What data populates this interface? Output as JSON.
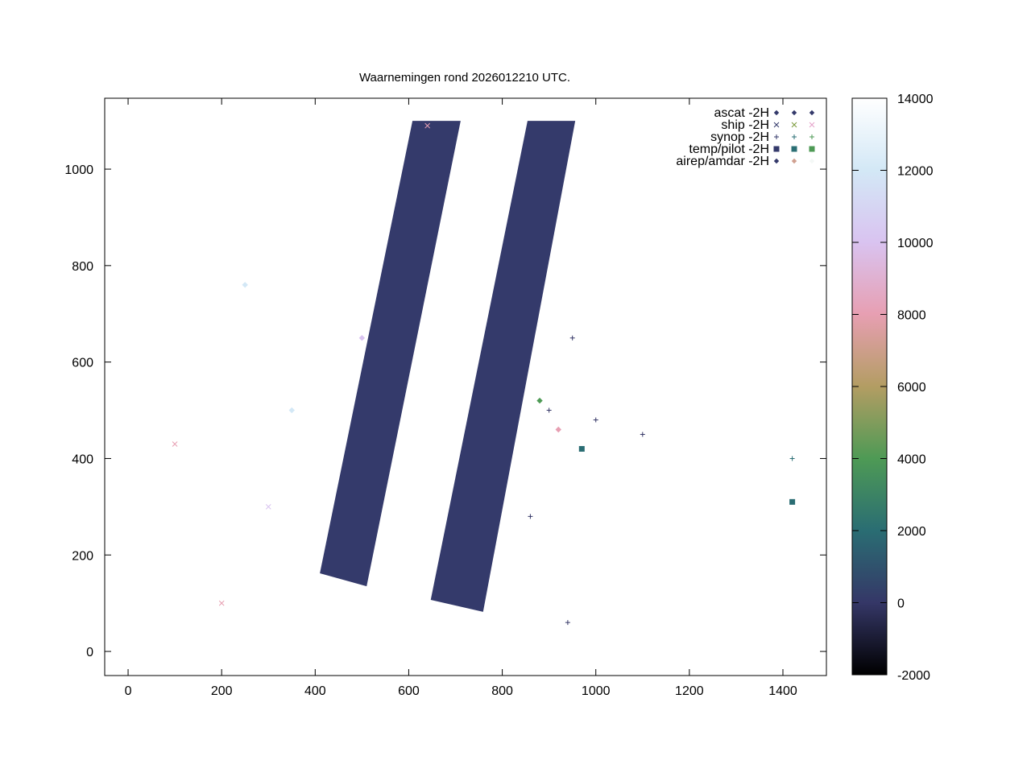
{
  "chart_data": {
    "type": "scatter",
    "title": "Waarnemingen rond 2026012210 UTC.",
    "xlim": [
      -50,
      1493
    ],
    "ylim": [
      -50,
      1147
    ],
    "x_ticks": [
      0,
      200,
      400,
      600,
      800,
      1000,
      1200,
      1400
    ],
    "y_ticks": [
      0,
      200,
      400,
      600,
      800,
      1000
    ],
    "grid": false,
    "legend_placement": "top-right",
    "legend": [
      {
        "name": "ascat -2H",
        "symbol": "diamond",
        "colors": [
          "#343a6b",
          "#343a6b",
          "#343a6b"
        ]
      },
      {
        "name": "ship -2H",
        "symbol": "x",
        "colors": [
          "#343a6b",
          "#7a9a3a",
          "#e4a0c8"
        ]
      },
      {
        "name": "synop -2H",
        "symbol": "+",
        "colors": [
          "#343a6b",
          "#2b6f74",
          "#4e9a55"
        ]
      },
      {
        "name": "temp/pilot -2H",
        "symbol": "square",
        "colors": [
          "#343a6b",
          "#2b6f74",
          "#4e9a55"
        ]
      },
      {
        "name": "airep/amdar -2H",
        "symbol": "diamond",
        "colors": [
          "#343a6b",
          "#d0a090",
          "#f4f8f6"
        ]
      }
    ],
    "ascat_swaths": [
      [
        [
          608,
          1100
        ],
        [
          711,
          1100
        ],
        [
          510,
          135
        ],
        [
          410,
          162
        ]
      ],
      [
        [
          854,
          1100
        ],
        [
          956,
          1100
        ],
        [
          759,
          82
        ],
        [
          647,
          107
        ]
      ]
    ],
    "sample_points": [
      {
        "series": "synop -2H",
        "x": 900,
        "y": 500,
        "value": 300
      },
      {
        "series": "synop -2H",
        "x": 1000,
        "y": 480,
        "value": 100
      },
      {
        "series": "synop -2H",
        "x": 1100,
        "y": 450,
        "value": 200
      },
      {
        "series": "synop -2H",
        "x": 950,
        "y": 650,
        "value": 150
      },
      {
        "series": "synop -2H",
        "x": 860,
        "y": 280,
        "value": 500
      },
      {
        "series": "synop -2H",
        "x": 1420,
        "y": 400,
        "value": 1500
      },
      {
        "series": "synop -2H",
        "x": 940,
        "y": 60,
        "value": 200
      },
      {
        "series": "ship -2H",
        "x": 100,
        "y": 430,
        "value": 9000
      },
      {
        "series": "ship -2H",
        "x": 200,
        "y": 100,
        "value": 9000
      },
      {
        "series": "ship -2H",
        "x": 300,
        "y": 300,
        "value": 11000
      },
      {
        "series": "ship -2H",
        "x": 640,
        "y": 1090,
        "value": 8500
      },
      {
        "series": "airep/amdar -2H",
        "x": 250,
        "y": 760,
        "value": 11500
      },
      {
        "series": "airep/amdar -2H",
        "x": 350,
        "y": 500,
        "value": 12500
      },
      {
        "series": "airep/amdar -2H",
        "x": 500,
        "y": 650,
        "value": 10500
      },
      {
        "series": "airep/amdar -2H",
        "x": 920,
        "y": 460,
        "value": 7500
      },
      {
        "series": "airep/amdar -2H",
        "x": 880,
        "y": 520,
        "value": 5000
      },
      {
        "series": "temp/pilot -2H",
        "x": 970,
        "y": 420,
        "value": 2000
      },
      {
        "series": "temp/pilot -2H",
        "x": 1420,
        "y": 310,
        "value": 3000
      }
    ],
    "colorbar": {
      "range": [
        -2000,
        14000
      ],
      "ticks": [
        -2000,
        0,
        2000,
        4000,
        6000,
        8000,
        10000,
        12000,
        14000
      ],
      "stops": [
        {
          "value": -2000,
          "color": "#000000"
        },
        {
          "value": 0,
          "color": "#353767"
        },
        {
          "value": 2000,
          "color": "#2a6d73"
        },
        {
          "value": 4000,
          "color": "#4e9a55"
        },
        {
          "value": 6000,
          "color": "#b39d63"
        },
        {
          "value": 8000,
          "color": "#e79fb2"
        },
        {
          "value": 10000,
          "color": "#d9c3f0"
        },
        {
          "value": 12000,
          "color": "#d3e8f6"
        },
        {
          "value": 14000,
          "color": "#ffffff"
        }
      ]
    },
    "coastline_color": "#0000ff"
  }
}
